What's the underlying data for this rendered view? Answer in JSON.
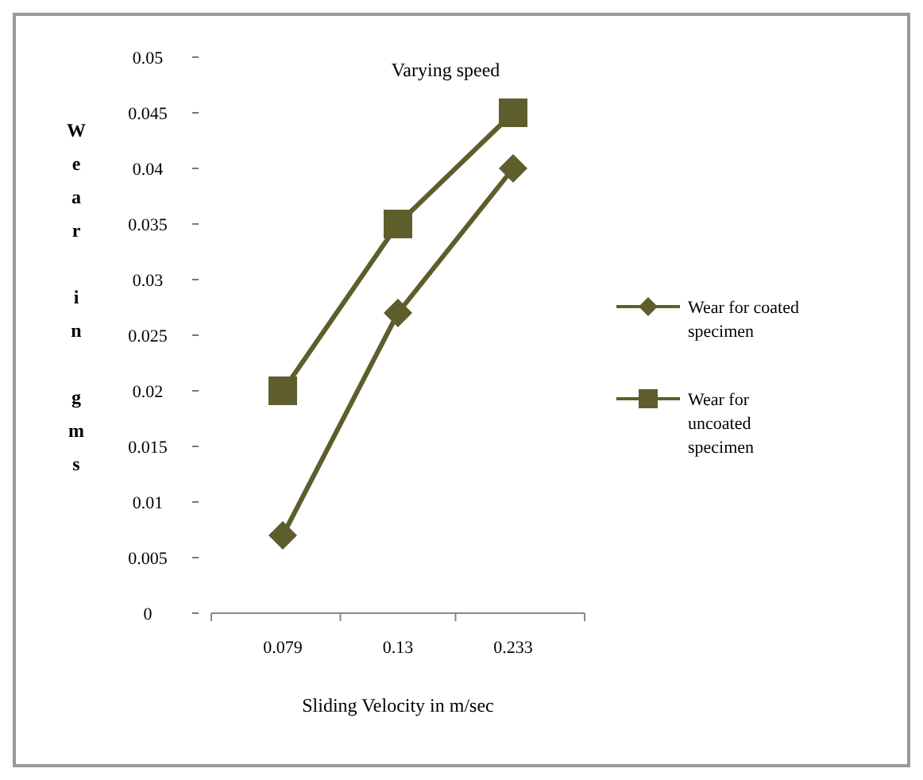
{
  "chart_data": {
    "type": "line",
    "title": "Varying speed",
    "xlabel": "Sliding Velocity in m/sec",
    "ylabel": "Wear in gms",
    "categories": [
      "0.079",
      "0.13",
      "0.233"
    ],
    "series": [
      {
        "name": "Wear for coated specimen",
        "color": "#5e5e2c",
        "marker": "diamond",
        "values": [
          0.007,
          0.027,
          0.04
        ]
      },
      {
        "name": "Wear for uncoated specimen",
        "color": "#5e5e2c",
        "marker": "square",
        "values": [
          0.02,
          0.035,
          0.045
        ]
      }
    ],
    "ylim": [
      0,
      0.05
    ],
    "yticks": [
      0,
      0.005,
      0.01,
      0.015,
      0.02,
      0.025,
      0.03,
      0.035,
      0.04,
      0.045,
      0.05
    ],
    "legend": "right"
  }
}
